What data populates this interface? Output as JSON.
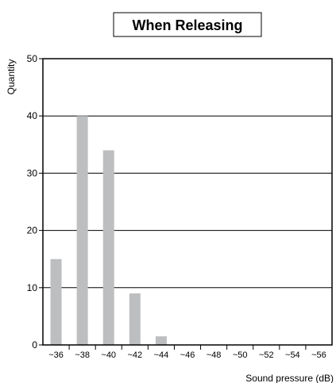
{
  "chart_data": {
    "type": "bar",
    "title": "When Releasing",
    "xlabel": "Sound pressure (dB)",
    "ylabel": "Quantity",
    "categories": [
      "~36",
      "~38",
      "~40",
      "~42",
      "~44",
      "~46",
      "~48",
      "~50",
      "~52",
      "~54",
      "~56"
    ],
    "values": [
      15,
      40,
      34,
      9,
      1.5,
      0,
      0,
      0,
      0,
      0,
      0
    ],
    "ylim": [
      0,
      50
    ],
    "yticks": [
      "0",
      "10",
      "20",
      "30",
      "40",
      "50"
    ],
    "grid": true,
    "bar_color": "#bdbec0",
    "grid_color": "#000000"
  }
}
